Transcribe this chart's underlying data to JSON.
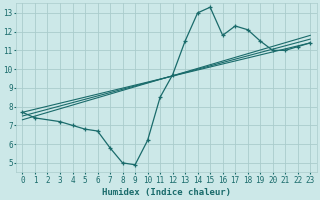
{
  "xlabel": "Humidex (Indice chaleur)",
  "bg_color": "#cce8e8",
  "grid_color": "#aacccc",
  "line_color": "#1a6b6b",
  "xlim": [
    -0.5,
    23.5
  ],
  "ylim": [
    4.5,
    13.5
  ],
  "xticks": [
    0,
    1,
    2,
    3,
    4,
    5,
    6,
    7,
    8,
    9,
    10,
    11,
    12,
    13,
    14,
    15,
    16,
    17,
    18,
    19,
    20,
    21,
    22,
    23
  ],
  "yticks": [
    5,
    6,
    7,
    8,
    9,
    10,
    11,
    12,
    13
  ],
  "main_x": [
    0,
    1,
    3,
    4,
    5,
    6,
    7,
    8,
    9,
    10,
    11,
    12,
    13,
    14,
    15,
    16,
    17,
    18,
    19,
    20,
    21,
    22,
    23
  ],
  "main_y": [
    7.7,
    7.4,
    7.2,
    7.0,
    6.8,
    6.7,
    5.8,
    5.0,
    4.9,
    6.2,
    8.5,
    9.7,
    11.5,
    13.0,
    13.3,
    11.8,
    12.3,
    12.1,
    11.5,
    11.0,
    11.0,
    11.2,
    11.4
  ],
  "trend_lines": [
    {
      "x": [
        0,
        23
      ],
      "y": [
        7.7,
        11.4
      ]
    },
    {
      "x": [
        0,
        23
      ],
      "y": [
        7.5,
        11.6
      ]
    },
    {
      "x": [
        0,
        23
      ],
      "y": [
        7.3,
        11.8
      ]
    }
  ]
}
